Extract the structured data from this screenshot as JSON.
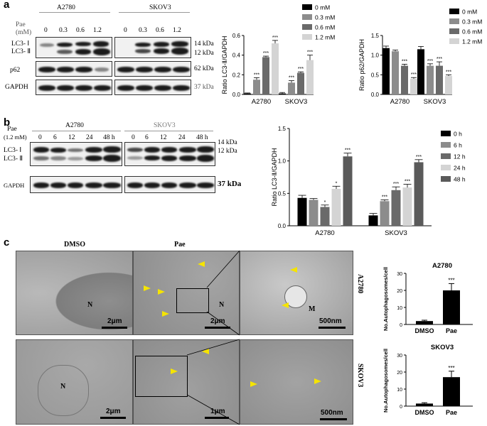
{
  "panel_a": {
    "letter": "a",
    "pae_label": "Pae",
    "unit_label": "(mM)",
    "cell_lines": [
      "A2780",
      "SKOV3"
    ],
    "doses": [
      "0",
      "0.3",
      "0.6",
      "1.2"
    ],
    "rows": [
      "LC3- Ⅰ",
      "LC3- Ⅱ",
      "p62",
      "GAPDH"
    ],
    "kda": [
      "14 kDa",
      "12 kDa",
      "62 kDa",
      "37  kDa"
    ]
  },
  "panel_b": {
    "letter": "b",
    "pae_label": "Pae",
    "unit_label": "(1.2 mM)",
    "cell_lines": [
      "A2780",
      "SKOV3"
    ],
    "times": [
      "0",
      "6",
      "12",
      "24",
      "48 h"
    ],
    "rows": [
      "LC3- Ⅰ",
      "LC3- Ⅱ",
      "GAPDH"
    ],
    "kda": [
      "14 kDa",
      "12 kDa",
      "37 kDa"
    ]
  },
  "panel_c": {
    "letter": "c",
    "col_labels": [
      "DMSO",
      "Pae"
    ],
    "row_labels": [
      "A2780",
      "SKOV3"
    ],
    "scale_labels": [
      "2μm",
      "2μm",
      "500nm",
      "2μm",
      "1μm",
      "500nm"
    ],
    "nucleus_label": "N",
    "mito_label": "M"
  },
  "chart_data": [
    {
      "type": "bar",
      "ylabel": "Ratio LC3-Ⅱ/GAPDH",
      "categories": [
        "A2780",
        "SKOV3"
      ],
      "ylim": [
        0,
        0.6
      ],
      "yticks": [
        "0.0",
        "0.2",
        "0.4",
        "0.6"
      ],
      "legend": "right",
      "colors": [
        "#000000",
        "#8c8c8c",
        "#6a6a6a",
        "#d4d4d4"
      ],
      "series": [
        {
          "name": "0 mM",
          "values": [
            0.01,
            0.01
          ],
          "errors": [
            0.005,
            0.01
          ]
        },
        {
          "name": "0.3 mM",
          "values": [
            0.15,
            0.12
          ],
          "errors": [
            0.02,
            0.02
          ]
        },
        {
          "name": "0.6 mM",
          "values": [
            0.38,
            0.22
          ],
          "errors": [
            0.01,
            0.01
          ]
        },
        {
          "name": "1.2 mM",
          "values": [
            0.52,
            0.35
          ],
          "errors": [
            0.03,
            0.05
          ]
        }
      ],
      "annotations": [
        [
          "",
          "***",
          "***",
          "***"
        ],
        [
          "",
          "***",
          "***",
          "***"
        ]
      ]
    },
    {
      "type": "bar",
      "ylabel": "Ratio p62/GAPDH",
      "categories": [
        "A2780",
        "SKOV3"
      ],
      "ylim": [
        0,
        1.5
      ],
      "yticks": [
        "0.0",
        "0.5",
        "1.0",
        "1.5"
      ],
      "legend": "top-right",
      "colors": [
        "#000000",
        "#8c8c8c",
        "#6a6a6a",
        "#d4d4d4"
      ],
      "series": [
        {
          "name": "0 mM",
          "values": [
            1.18,
            1.15
          ],
          "errors": [
            0.05,
            0.07
          ]
        },
        {
          "name": "0.3 mM",
          "values": [
            1.1,
            0.73
          ],
          "errors": [
            0.03,
            0.05
          ]
        },
        {
          "name": "0.6 mM",
          "values": [
            0.73,
            0.73
          ],
          "errors": [
            0.04,
            0.1
          ]
        },
        {
          "name": "1.2 mM",
          "values": [
            0.4,
            0.47
          ],
          "errors": [
            0.03,
            0.03
          ]
        }
      ],
      "annotations": [
        [
          "",
          "",
          "***",
          "***"
        ],
        [
          "",
          "***",
          "***",
          "***"
        ]
      ]
    },
    {
      "type": "bar",
      "ylabel": "Ratio LC3-Ⅱ/GAPDH",
      "categories": [
        "A2780",
        "SKOV3"
      ],
      "ylim": [
        0,
        1.5
      ],
      "yticks": [
        "0.0",
        "0.5",
        "1.0",
        "1.5"
      ],
      "legend": "right",
      "colors": [
        "#000000",
        "#8c8c8c",
        "#6a6a6a",
        "#d4d4d4",
        "#5a5a5a"
      ],
      "series": [
        {
          "name": "0 h",
          "values": [
            0.43,
            0.16
          ],
          "errors": [
            0.04,
            0.03
          ]
        },
        {
          "name": "6 h",
          "values": [
            0.4,
            0.38
          ],
          "errors": [
            0.02,
            0.02
          ]
        },
        {
          "name": "12 h",
          "values": [
            0.29,
            0.55
          ],
          "errors": [
            0.03,
            0.05
          ]
        },
        {
          "name": "24 h",
          "values": [
            0.57,
            0.59
          ],
          "errors": [
            0.04,
            0.05
          ]
        },
        {
          "name": "48 h",
          "values": [
            1.07,
            0.98
          ],
          "errors": [
            0.05,
            0.04
          ]
        }
      ],
      "annotations": [
        [
          "",
          "",
          "*",
          "*",
          "***"
        ],
        [
          "",
          "***",
          "***",
          "***",
          "***"
        ]
      ]
    },
    {
      "type": "bar",
      "title": "A2780",
      "ylabel": "No.Autophagosomes/cell",
      "categories": [
        "DMSO",
        "Pae"
      ],
      "ylim": [
        0,
        30
      ],
      "yticks": [
        "0",
        "10",
        "20",
        "30"
      ],
      "colors": [
        "#000000",
        "#000000"
      ],
      "values": [
        2,
        20
      ],
      "errors": [
        0.5,
        4
      ],
      "annotations": [
        "",
        "***"
      ]
    },
    {
      "type": "bar",
      "title": "SKOV3",
      "ylabel": "No.Autophagosomes/cell",
      "categories": [
        "DMSO",
        "Pae"
      ],
      "ylim": [
        0,
        30
      ],
      "yticks": [
        "0",
        "10",
        "20",
        "30"
      ],
      "colors": [
        "#000000",
        "#000000"
      ],
      "values": [
        1.5,
        17
      ],
      "errors": [
        0.5,
        3.5
      ],
      "annotations": [
        "",
        "***"
      ]
    }
  ]
}
